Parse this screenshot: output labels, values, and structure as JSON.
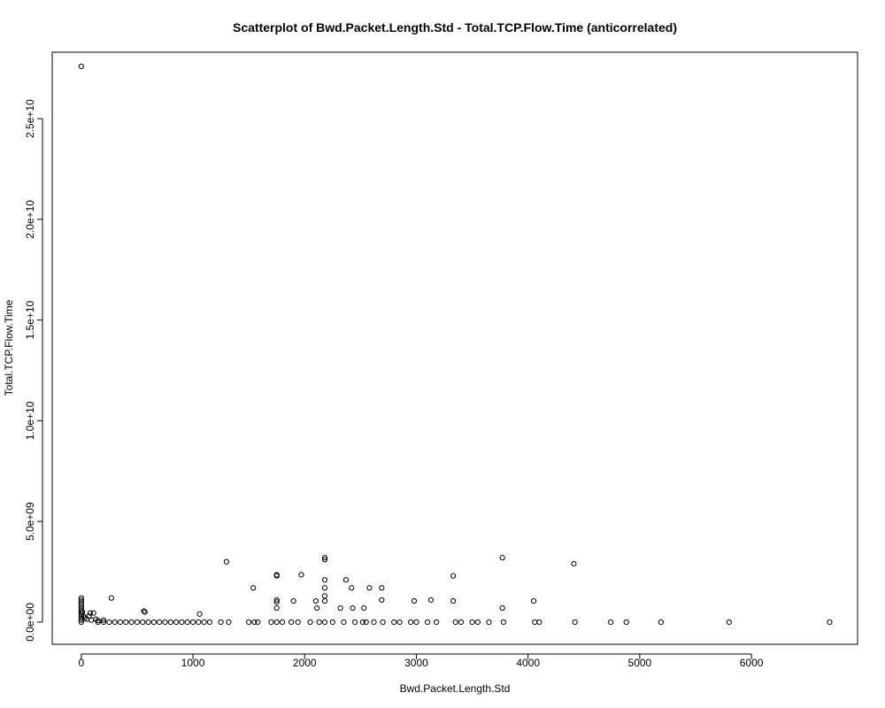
{
  "chart_data": {
    "type": "scatter",
    "title": "Scatterplot of Bwd.Packet.Length.Std - Total.TCP.Flow.Time (anticorrelated)",
    "xlabel": "Bwd.Packet.Length.Std",
    "ylabel": "Total.TCP.Flow.Time",
    "xlim": [
      -260,
      6950
    ],
    "ylim": [
      -1100000000.0,
      28300000000.0
    ],
    "x_ticks": [
      0,
      1000,
      2000,
      3000,
      4000,
      5000,
      6000
    ],
    "x_tick_labels": [
      "0",
      "1000",
      "2000",
      "3000",
      "4000",
      "5000",
      "6000"
    ],
    "y_ticks": [
      0,
      5000000000.0,
      10000000000.0,
      15000000000.0,
      20000000000.0,
      25000000000.0
    ],
    "y_tick_labels": [
      "0.0e+00",
      "5.0e+09",
      "1.0e+10",
      "1.5e+10",
      "2.0e+10",
      "2.5e+10"
    ],
    "grid": false,
    "legend": "none",
    "marker": "open-circle",
    "colors": {
      "points": "#000000",
      "axes": "#000000",
      "background": "#ffffff"
    },
    "series": [
      {
        "points": [
          [
            0,
            27600000000.0
          ],
          [
            0,
            1200000000.0
          ],
          [
            0,
            1100000000.0
          ],
          [
            0,
            1000000000.0
          ],
          [
            0,
            900000000.0
          ],
          [
            0,
            800000000.0
          ],
          [
            0,
            700000000.0
          ],
          [
            0,
            600000000.0
          ],
          [
            0,
            500000000.0
          ],
          [
            0,
            400000000.0
          ],
          [
            0,
            300000000.0
          ],
          [
            0,
            200000000.0
          ],
          [
            0,
            100000000.0
          ],
          [
            0,
            0
          ],
          [
            10,
            500000000.0
          ],
          [
            20,
            300000000.0
          ],
          [
            30,
            200000000.0
          ],
          [
            50,
            150000000.0
          ],
          [
            70,
            300000000.0
          ],
          [
            90,
            100000000.0
          ],
          [
            80,
            450000000.0
          ],
          [
            110,
            450000000.0
          ],
          [
            130,
            150000000.0
          ],
          [
            150,
            80000000.0
          ],
          [
            200,
            100000000.0
          ],
          [
            270,
            1200000000.0
          ],
          [
            560,
            550000000.0
          ],
          [
            570,
            500000000.0
          ],
          [
            1060,
            400000000.0
          ],
          [
            300,
            0
          ],
          [
            350,
            0
          ],
          [
            400,
            0
          ],
          [
            450,
            0
          ],
          [
            500,
            0
          ],
          [
            550,
            0
          ],
          [
            600,
            0
          ],
          [
            650,
            0
          ],
          [
            700,
            0
          ],
          [
            750,
            0
          ],
          [
            800,
            0
          ],
          [
            850,
            0
          ],
          [
            900,
            0
          ],
          [
            950,
            0
          ],
          [
            1000,
            0
          ],
          [
            1050,
            0
          ],
          [
            1100,
            0
          ],
          [
            1150,
            0
          ],
          [
            250,
            0
          ],
          [
            200,
            0
          ],
          [
            150,
            0
          ],
          [
            1250,
            0
          ],
          [
            1300,
            3000000000.0
          ],
          [
            1320,
            0
          ],
          [
            1500,
            0
          ],
          [
            1540,
            1700000000.0
          ],
          [
            1550,
            0
          ],
          [
            1580,
            0
          ],
          [
            1700,
            0
          ],
          [
            1750,
            2350000000.0
          ],
          [
            1750,
            2300000000.0
          ],
          [
            1750,
            1100000000.0
          ],
          [
            1750,
            1000000000.0
          ],
          [
            1750,
            700000000.0
          ],
          [
            1750,
            0
          ],
          [
            1800,
            0
          ],
          [
            1880,
            0
          ],
          [
            1900,
            1050000000.0
          ],
          [
            1940,
            0
          ],
          [
            1970,
            2350000000.0
          ],
          [
            2050,
            0
          ],
          [
            2100,
            1050000000.0
          ],
          [
            2110,
            700000000.0
          ],
          [
            2130,
            0
          ],
          [
            2180,
            3200000000.0
          ],
          [
            2180,
            3100000000.0
          ],
          [
            2180,
            2100000000.0
          ],
          [
            2180,
            1700000000.0
          ],
          [
            2180,
            1300000000.0
          ],
          [
            2180,
            1050000000.0
          ],
          [
            2180,
            0
          ],
          [
            2250,
            0
          ],
          [
            2320,
            700000000.0
          ],
          [
            2350,
            0
          ],
          [
            2370,
            2100000000.0
          ],
          [
            2420,
            1700000000.0
          ],
          [
            2430,
            700000000.0
          ],
          [
            2450,
            0
          ],
          [
            2520,
            0
          ],
          [
            2530,
            700000000.0
          ],
          [
            2550,
            0
          ],
          [
            2580,
            1700000000.0
          ],
          [
            2620,
            0
          ],
          [
            2690,
            1700000000.0
          ],
          [
            2690,
            1100000000.0
          ],
          [
            2700,
            0
          ],
          [
            2800,
            0
          ],
          [
            2850,
            0
          ],
          [
            2950,
            0
          ],
          [
            2980,
            1050000000.0
          ],
          [
            3000,
            0
          ],
          [
            3100,
            0
          ],
          [
            3130,
            1100000000.0
          ],
          [
            3180,
            0
          ],
          [
            3330,
            2300000000.0
          ],
          [
            3330,
            1050000000.0
          ],
          [
            3350,
            0
          ],
          [
            3400,
            0
          ],
          [
            3500,
            0
          ],
          [
            3550,
            0
          ],
          [
            3650,
            0
          ],
          [
            3770,
            3200000000.0
          ],
          [
            3770,
            700000000.0
          ],
          [
            3780,
            0
          ],
          [
            4050,
            1050000000.0
          ],
          [
            4060,
            0
          ],
          [
            4100,
            0
          ],
          [
            4410,
            2900000000.0
          ],
          [
            4420,
            0
          ],
          [
            4740,
            0
          ],
          [
            4880,
            0
          ],
          [
            5190,
            0
          ],
          [
            5800,
            0
          ],
          [
            6700,
            0
          ]
        ]
      }
    ]
  }
}
